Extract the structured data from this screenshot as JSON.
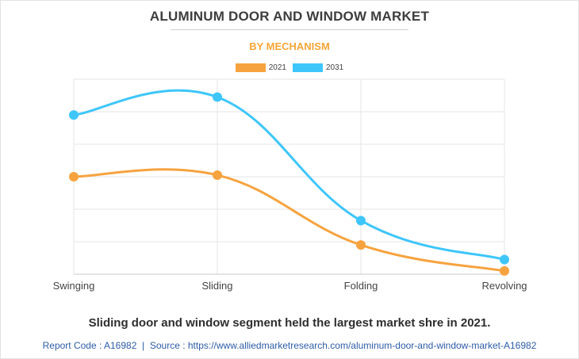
{
  "chart_data": {
    "type": "line",
    "title": "ALUMINUM DOOR AND WINDOW MARKET",
    "subtitle": "BY MECHANISM",
    "categories": [
      "Swinging",
      "Sliding",
      "Folding",
      "Revolving"
    ],
    "series": [
      {
        "name": "2021",
        "color": "#f6a33f",
        "values": [
          3.0,
          3.05,
          0.9,
          0.1
        ]
      },
      {
        "name": "2031",
        "color": "#3ec6fa",
        "values": [
          4.9,
          5.45,
          1.65,
          0.45
        ]
      }
    ],
    "ylim": [
      0,
      6
    ],
    "grid": true,
    "y_tick_labels_shown": false,
    "legend_position": "top-center",
    "smooth": true
  },
  "caption": "Sliding door and window segment held the largest market shre in 2021.",
  "footer": {
    "report_code": "Report Code : A16982",
    "separator": "|",
    "source": "Source : https://www.alliedmarketresearch.com/aluminum-door-and-window-market-A16982"
  }
}
